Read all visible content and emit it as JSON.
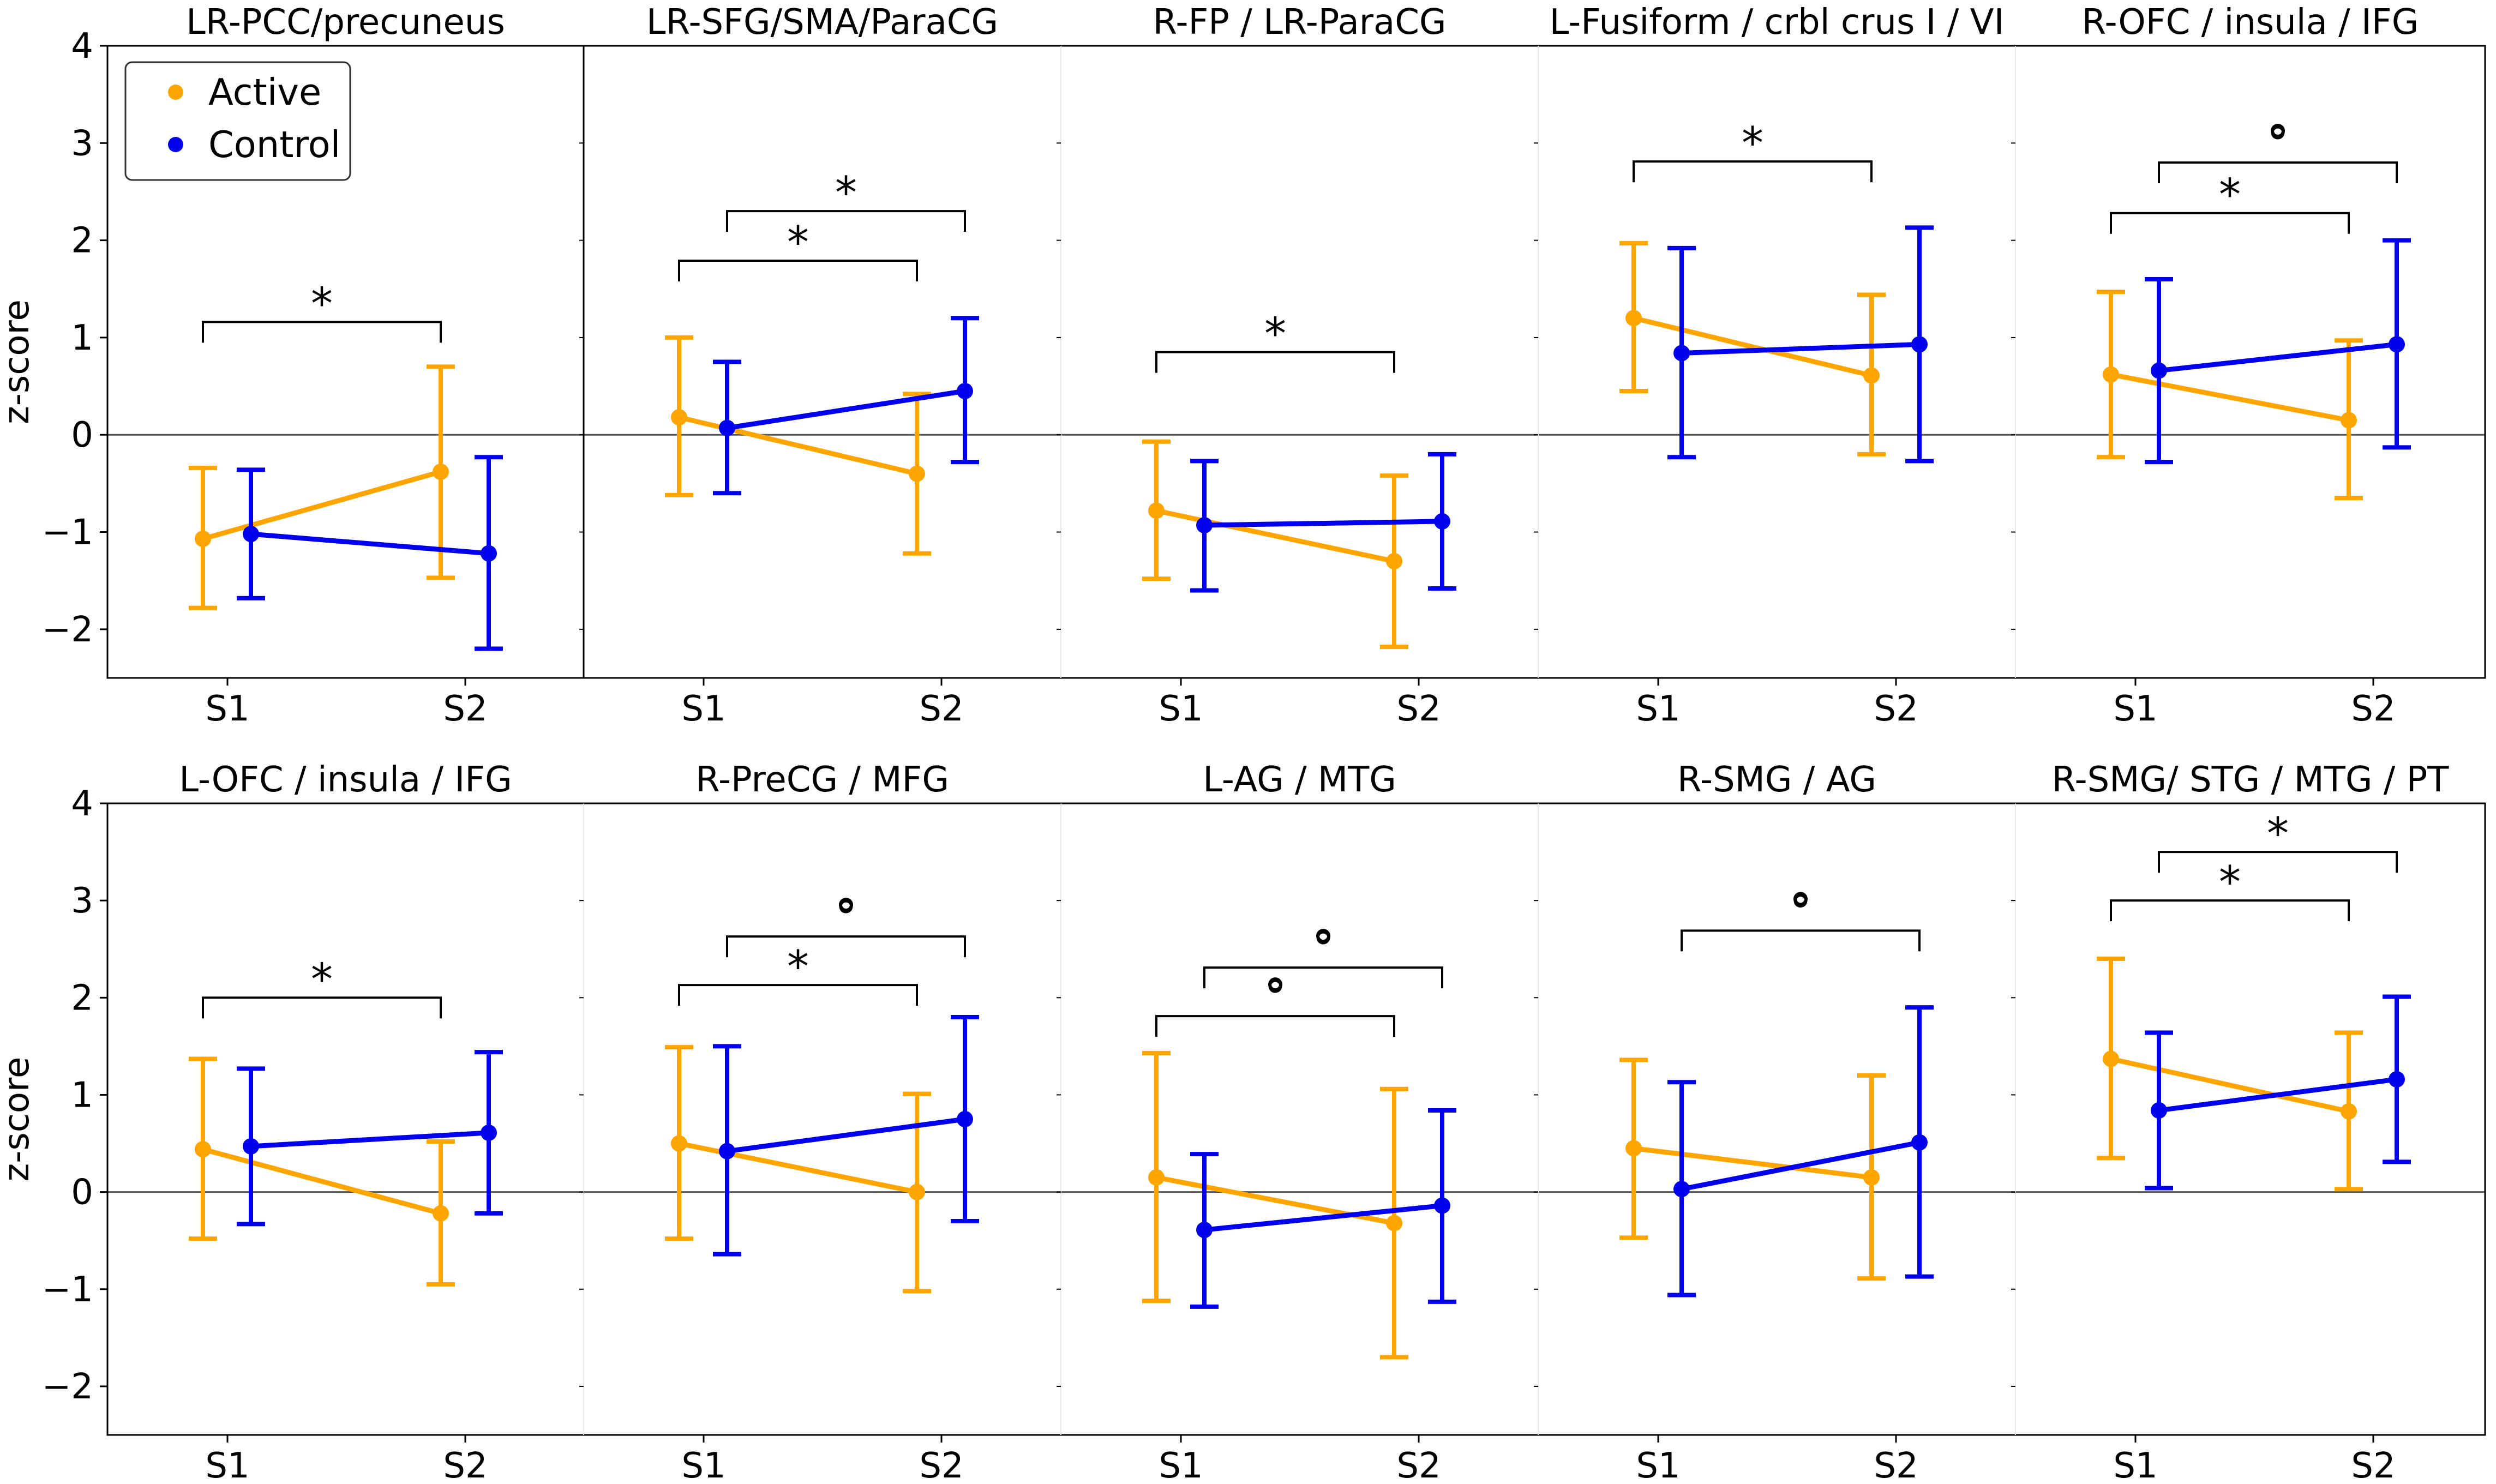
{
  "chart_data": {
    "type": "line",
    "description_axis": {
      "ylabel": "z-score",
      "ylim": [
        -2.5,
        4
      ],
      "yticks": [
        -2,
        -1,
        0,
        1,
        2,
        3,
        4
      ],
      "ytick_labels": [
        "−2",
        "−1",
        "0",
        "1",
        "2",
        "3",
        "4"
      ],
      "categories": [
        "S1",
        "S2"
      ]
    },
    "legend": {
      "position": "top-left",
      "entries": [
        {
          "name": "Active",
          "color": "#FFA500"
        },
        {
          "name": "Control",
          "color": "#0000EE"
        }
      ]
    },
    "colors": {
      "active": "#FFA500",
      "control": "#0000EE",
      "axis": "#000000"
    },
    "panels": [
      {
        "title": "LR-PCC/precuneus",
        "series": [
          {
            "name": "Active",
            "values": [
              -1.07,
              -0.38
            ],
            "err_low": [
              -1.78,
              -1.47
            ],
            "err_high": [
              -0.34,
              0.7
            ]
          },
          {
            "name": "Control",
            "values": [
              -1.02,
              -1.22
            ],
            "err_low": [
              -1.68,
              -2.2
            ],
            "err_high": [
              -0.36,
              -0.23
            ]
          }
        ],
        "brackets": [
          {
            "series_from": "Active",
            "series_to": "Active",
            "y": 1.16,
            "label": "*"
          }
        ]
      },
      {
        "title": "LR-SFG/SMA/ParaCG",
        "series": [
          {
            "name": "Active",
            "values": [
              0.18,
              -0.4
            ],
            "err_low": [
              -0.62,
              -1.22
            ],
            "err_high": [
              1.0,
              0.42
            ]
          },
          {
            "name": "Control",
            "values": [
              0.07,
              0.45
            ],
            "err_low": [
              -0.6,
              -0.28
            ],
            "err_high": [
              0.75,
              1.2
            ]
          }
        ],
        "brackets": [
          {
            "series_from": "Active",
            "series_to": "Active",
            "y": 1.79,
            "label": "*"
          },
          {
            "series_from": "Control",
            "series_to": "Control",
            "y": 2.3,
            "label": "*"
          }
        ]
      },
      {
        "title": "R-FP / LR-ParaCG",
        "series": [
          {
            "name": "Active",
            "values": [
              -0.78,
              -1.3
            ],
            "err_low": [
              -1.48,
              -2.18
            ],
            "err_high": [
              -0.07,
              -0.42
            ]
          },
          {
            "name": "Control",
            "values": [
              -0.93,
              -0.89
            ],
            "err_low": [
              -1.6,
              -1.58
            ],
            "err_high": [
              -0.27,
              -0.2
            ]
          }
        ],
        "brackets": [
          {
            "series_from": "Active",
            "series_to": "Active",
            "y": 0.85,
            "label": "*"
          }
        ]
      },
      {
        "title": "L-Fusiform / crbl crus I / VI",
        "series": [
          {
            "name": "Active",
            "values": [
              1.2,
              0.61
            ],
            "err_low": [
              0.45,
              -0.2
            ],
            "err_high": [
              1.97,
              1.44
            ]
          },
          {
            "name": "Control",
            "values": [
              0.84,
              0.93
            ],
            "err_low": [
              -0.23,
              -0.27
            ],
            "err_high": [
              1.92,
              2.13
            ]
          }
        ],
        "brackets": [
          {
            "series_from": "Active",
            "series_to": "Active",
            "y": 2.81,
            "label": "*"
          }
        ]
      },
      {
        "title": "R-OFC / insula / IFG",
        "series": [
          {
            "name": "Active",
            "values": [
              0.62,
              0.15
            ],
            "err_low": [
              -0.23,
              -0.65
            ],
            "err_high": [
              1.47,
              0.97
            ]
          },
          {
            "name": "Control",
            "values": [
              0.66,
              0.93
            ],
            "err_low": [
              -0.28,
              -0.13
            ],
            "err_high": [
              1.6,
              2.0
            ]
          }
        ],
        "brackets": [
          {
            "series_from": "Active",
            "series_to": "Active",
            "y": 2.28,
            "label": "*"
          },
          {
            "series_from": "Control",
            "series_to": "Control",
            "y": 2.8,
            "label": "°"
          }
        ]
      },
      {
        "title": "L-OFC / insula / IFG",
        "series": [
          {
            "name": "Active",
            "values": [
              0.44,
              -0.22
            ],
            "err_low": [
              -0.48,
              -0.95
            ],
            "err_high": [
              1.37,
              0.52
            ]
          },
          {
            "name": "Control",
            "values": [
              0.47,
              0.61
            ],
            "err_low": [
              -0.33,
              -0.22
            ],
            "err_high": [
              1.27,
              1.44
            ]
          }
        ],
        "brackets": [
          {
            "series_from": "Active",
            "series_to": "Active",
            "y": 2.0,
            "label": "*"
          }
        ]
      },
      {
        "title": "R-PreCG / MFG",
        "series": [
          {
            "name": "Active",
            "values": [
              0.5,
              0.0
            ],
            "err_low": [
              -0.48,
              -1.02
            ],
            "err_high": [
              1.49,
              1.01
            ]
          },
          {
            "name": "Control",
            "values": [
              0.42,
              0.75
            ],
            "err_low": [
              -0.64,
              -0.3
            ],
            "err_high": [
              1.5,
              1.8
            ]
          }
        ],
        "brackets": [
          {
            "series_from": "Active",
            "series_to": "Active",
            "y": 2.13,
            "label": "*"
          },
          {
            "series_from": "Control",
            "series_to": "Control",
            "y": 2.63,
            "label": "°"
          }
        ]
      },
      {
        "title": "L-AG / MTG",
        "series": [
          {
            "name": "Active",
            "values": [
              0.15,
              -0.32
            ],
            "err_low": [
              -1.12,
              -1.7
            ],
            "err_high": [
              1.43,
              1.06
            ]
          },
          {
            "name": "Control",
            "values": [
              -0.39,
              -0.14
            ],
            "err_low": [
              -1.18,
              -1.13
            ],
            "err_high": [
              0.39,
              0.84
            ]
          }
        ],
        "brackets": [
          {
            "series_from": "Active",
            "series_to": "Active",
            "y": 1.81,
            "label": "°"
          },
          {
            "series_from": "Control",
            "series_to": "Control",
            "y": 2.31,
            "label": "°"
          }
        ]
      },
      {
        "title": "R-SMG / AG",
        "series": [
          {
            "name": "Active",
            "values": [
              0.45,
              0.15
            ],
            "err_low": [
              -0.47,
              -0.89
            ],
            "err_high": [
              1.36,
              1.2
            ]
          },
          {
            "name": "Control",
            "values": [
              0.03,
              0.51
            ],
            "err_low": [
              -1.06,
              -0.87
            ],
            "err_high": [
              1.13,
              1.9
            ]
          }
        ],
        "brackets": [
          {
            "series_from": "Control",
            "series_to": "Control",
            "y": 2.69,
            "label": "°"
          }
        ]
      },
      {
        "title": "R-SMG/ STG / MTG / PT",
        "series": [
          {
            "name": "Active",
            "values": [
              1.37,
              0.83
            ],
            "err_low": [
              0.35,
              0.03
            ],
            "err_high": [
              2.4,
              1.64
            ]
          },
          {
            "name": "Control",
            "values": [
              0.84,
              1.16
            ],
            "err_low": [
              0.04,
              0.31
            ],
            "err_high": [
              1.64,
              2.01
            ]
          }
        ],
        "brackets": [
          {
            "series_from": "Active",
            "series_to": "Active",
            "y": 3.0,
            "label": "*"
          },
          {
            "series_from": "Control",
            "series_to": "Control",
            "y": 3.5,
            "label": "*"
          }
        ]
      }
    ]
  }
}
